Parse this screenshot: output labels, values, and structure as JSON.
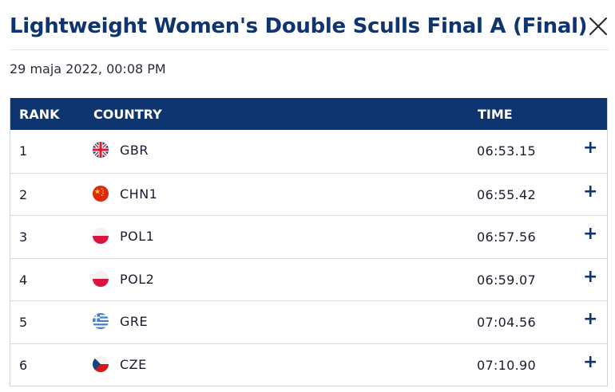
{
  "header": {
    "title": "Lightweight Women's Double Sculls Final A (Final)",
    "close_icon": "close-icon"
  },
  "date": "29 maja 2022, 00:08 PM",
  "table": {
    "columns": {
      "rank": "RANK",
      "country": "COUNTRY",
      "time": "TIME"
    },
    "rows": [
      {
        "rank": "1",
        "country": "GBR",
        "flag": "flag-gbr-icon",
        "time": "06:53.15",
        "expand": "+"
      },
      {
        "rank": "2",
        "country": "CHN1",
        "flag": "flag-chn-icon",
        "time": "06:55.42",
        "expand": "+"
      },
      {
        "rank": "3",
        "country": "POL1",
        "flag": "flag-pol-icon",
        "time": "06:57.56",
        "expand": "+"
      },
      {
        "rank": "4",
        "country": "POL2",
        "flag": "flag-pol-icon",
        "time": "06:59.07",
        "expand": "+"
      },
      {
        "rank": "5",
        "country": "GRE",
        "flag": "flag-gre-icon",
        "time": "07:04.56",
        "expand": "+"
      },
      {
        "rank": "6",
        "country": "CZE",
        "flag": "flag-cze-icon",
        "time": "07:10.90",
        "expand": "+"
      }
    ]
  },
  "colors": {
    "brand": "#0f3570",
    "border": "#d0d4dc"
  }
}
